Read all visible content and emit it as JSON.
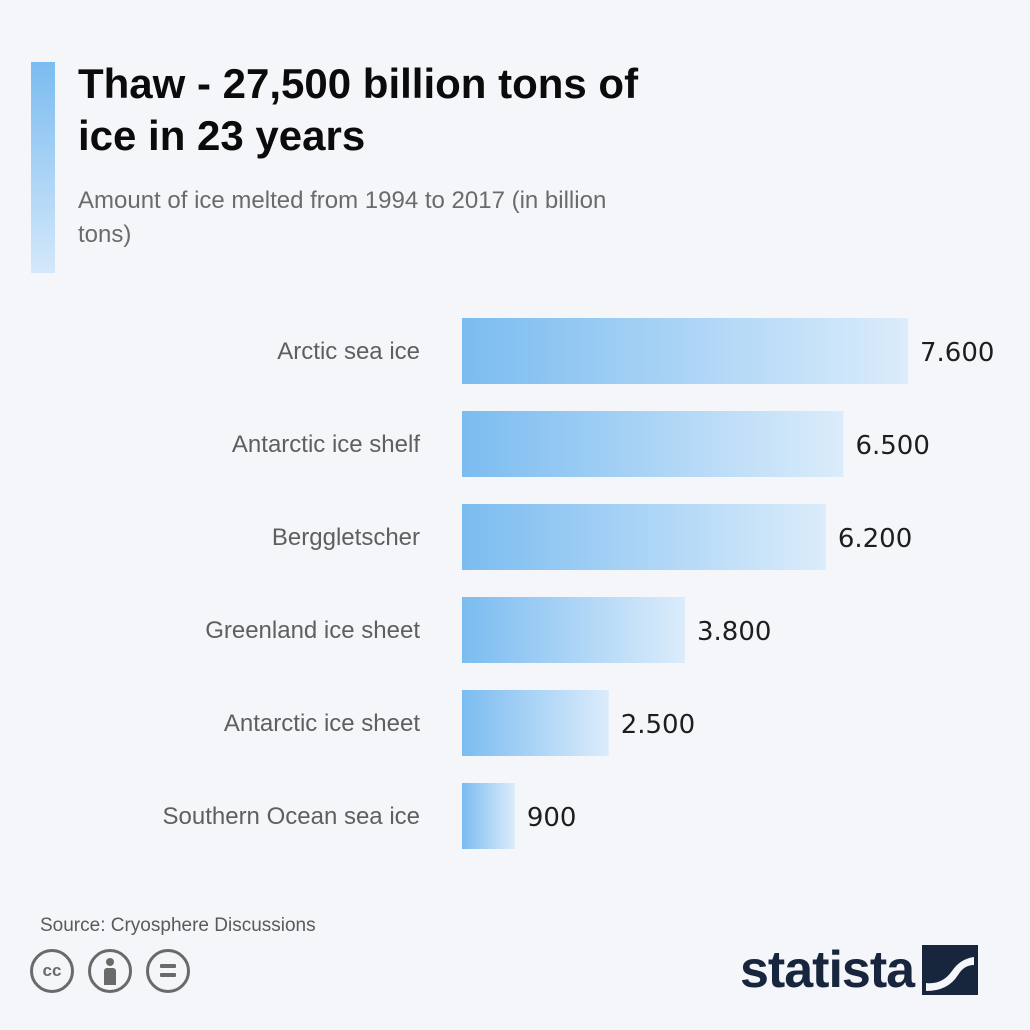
{
  "header": {
    "title": "Thaw - 27,500 billion tons of ice in 23 years",
    "subtitle": "Amount of ice melted from 1994 to 2017 (in billion tons)"
  },
  "chart_data": {
    "type": "bar",
    "orientation": "horizontal",
    "title": "Thaw - 27,500 billion tons of ice in 23 years",
    "subtitle": "Amount of ice melted from 1994 to 2017 (in billion tons)",
    "categories": [
      "Arctic sea ice",
      "Antarctic ice shelf",
      "Berggletscher",
      "Greenland ice sheet",
      "Antarctic ice sheet",
      "Southern Ocean sea ice"
    ],
    "values": [
      7600,
      6500,
      6200,
      3800,
      2500,
      900
    ],
    "value_labels": [
      "7.600",
      "6.500",
      "6.200",
      "3.800",
      "2.500",
      "900"
    ],
    "xlim": [
      0,
      7600
    ],
    "grid": false,
    "legend": "none",
    "bar_gradient": [
      "#7bbcf0",
      "#dbecfb"
    ]
  },
  "footer": {
    "source": "Source: Cryosphere Discussions",
    "license_icons": [
      "cc-icon",
      "by-icon",
      "nd-icon"
    ],
    "cc_text": "cc",
    "brand": "statista",
    "brand_color": "#17263d"
  }
}
